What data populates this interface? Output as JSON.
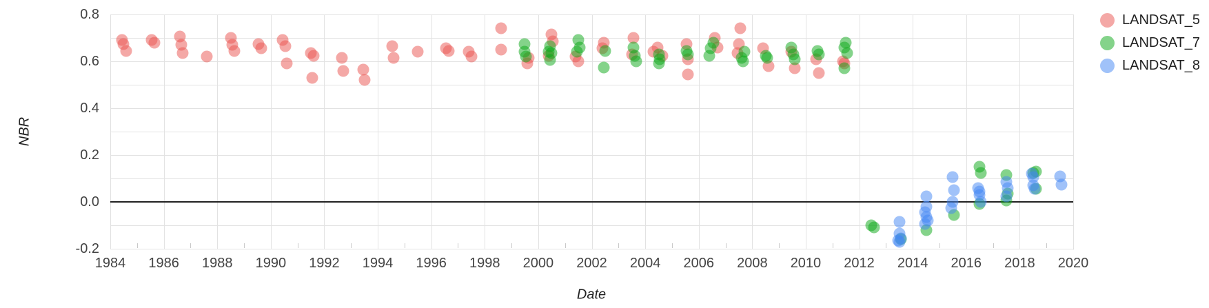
{
  "axes": {
    "x_title": "Date",
    "y_title": "NBR"
  },
  "legend": {
    "items": [
      {
        "label": "LANDSAT_5",
        "color": "rgba(233,81,77,0.5)"
      },
      {
        "label": "LANDSAT_7",
        "color": "rgba(10,167,22,0.5)"
      },
      {
        "label": "LANDSAT_8",
        "color": "rgba(66,133,244,0.5)"
      }
    ]
  },
  "chart_data": {
    "type": "scatter",
    "title": "",
    "xlabel": "Date",
    "ylabel": "NBR",
    "xlim": [
      1984,
      2020
    ],
    "ylim": [
      -0.2,
      0.8
    ],
    "x_tick_labels": [
      "1984",
      "1986",
      "1988",
      "1990",
      "1992",
      "1994",
      "1996",
      "1998",
      "2000",
      "2002",
      "2004",
      "2006",
      "2008",
      "2010",
      "2012",
      "2014",
      "2016",
      "2018",
      "2020"
    ],
    "y_tick_labels": [
      "-0.2",
      "0.0",
      "0.2",
      "0.4",
      "0.6",
      "0.8"
    ],
    "grid": "on",
    "grid_x_step_years": 2,
    "grid_y_step": 0.1,
    "zero_line": true,
    "legend_position": "right-outside-top",
    "marker_diameter_px": 17,
    "series": [
      {
        "name": "LANDSAT_5",
        "color": "rgba(233,81,77,0.5)",
        "points": [
          [
            1984.45,
            0.69
          ],
          [
            1984.5,
            0.675
          ],
          [
            1984.6,
            0.645
          ],
          [
            1985.55,
            0.69
          ],
          [
            1985.65,
            0.68
          ],
          [
            1986.6,
            0.705
          ],
          [
            1986.65,
            0.67
          ],
          [
            1986.7,
            0.635
          ],
          [
            1987.6,
            0.62
          ],
          [
            1988.5,
            0.7
          ],
          [
            1988.55,
            0.67
          ],
          [
            1988.65,
            0.645
          ],
          [
            1989.55,
            0.675
          ],
          [
            1989.65,
            0.655
          ],
          [
            1990.45,
            0.69
          ],
          [
            1990.55,
            0.665
          ],
          [
            1990.6,
            0.59
          ],
          [
            1991.5,
            0.635
          ],
          [
            1991.6,
            0.625
          ],
          [
            1991.55,
            0.53
          ],
          [
            1992.65,
            0.615
          ],
          [
            1992.7,
            0.56
          ],
          [
            1993.45,
            0.565
          ],
          [
            1993.5,
            0.52
          ],
          [
            1994.55,
            0.665
          ],
          [
            1994.6,
            0.615
          ],
          [
            1995.5,
            0.64
          ],
          [
            1996.55,
            0.655
          ],
          [
            1996.65,
            0.645
          ],
          [
            1997.4,
            0.64
          ],
          [
            1997.5,
            0.62
          ],
          [
            1998.6,
            0.74
          ],
          [
            1998.6,
            0.65
          ],
          [
            1999.65,
            0.615
          ],
          [
            1999.6,
            0.59
          ],
          [
            2000.5,
            0.715
          ],
          [
            2000.55,
            0.685
          ],
          [
            2000.4,
            0.625
          ],
          [
            2001.4,
            0.62
          ],
          [
            2001.5,
            0.6
          ],
          [
            2002.45,
            0.68
          ],
          [
            2002.4,
            0.655
          ],
          [
            2003.55,
            0.7
          ],
          [
            2003.5,
            0.63
          ],
          [
            2004.45,
            0.66
          ],
          [
            2004.3,
            0.64
          ],
          [
            2004.65,
            0.625
          ],
          [
            2005.55,
            0.675
          ],
          [
            2005.6,
            0.61
          ],
          [
            2005.6,
            0.545
          ],
          [
            2006.6,
            0.7
          ],
          [
            2006.7,
            0.66
          ],
          [
            2007.55,
            0.74
          ],
          [
            2007.5,
            0.675
          ],
          [
            2007.45,
            0.635
          ],
          [
            2008.4,
            0.655
          ],
          [
            2008.6,
            0.58
          ],
          [
            2009.45,
            0.64
          ],
          [
            2009.6,
            0.57
          ],
          [
            2010.4,
            0.61
          ],
          [
            2010.5,
            0.55
          ],
          [
            2011.4,
            0.6
          ],
          [
            2011.45,
            0.59
          ]
        ]
      },
      {
        "name": "LANDSAT_7",
        "color": "rgba(10,167,22,0.5)",
        "points": [
          [
            1999.5,
            0.675
          ],
          [
            1999.5,
            0.64
          ],
          [
            1999.55,
            0.62
          ],
          [
            2000.45,
            0.665
          ],
          [
            2000.4,
            0.64
          ],
          [
            2000.5,
            0.635
          ],
          [
            2000.45,
            0.605
          ],
          [
            2001.5,
            0.69
          ],
          [
            2001.55,
            0.66
          ],
          [
            2001.45,
            0.64
          ],
          [
            2002.5,
            0.645
          ],
          [
            2002.45,
            0.575
          ],
          [
            2003.55,
            0.66
          ],
          [
            2003.6,
            0.625
          ],
          [
            2003.65,
            0.6
          ],
          [
            2004.5,
            0.63
          ],
          [
            2004.55,
            0.61
          ],
          [
            2004.5,
            0.59
          ],
          [
            2005.55,
            0.645
          ],
          [
            2005.6,
            0.63
          ],
          [
            2006.55,
            0.68
          ],
          [
            2006.45,
            0.655
          ],
          [
            2006.4,
            0.625
          ],
          [
            2007.7,
            0.64
          ],
          [
            2007.6,
            0.615
          ],
          [
            2007.65,
            0.6
          ],
          [
            2008.5,
            0.625
          ],
          [
            2008.55,
            0.615
          ],
          [
            2009.45,
            0.66
          ],
          [
            2009.55,
            0.63
          ],
          [
            2009.6,
            0.61
          ],
          [
            2010.45,
            0.645
          ],
          [
            2010.5,
            0.63
          ],
          [
            2011.5,
            0.68
          ],
          [
            2011.45,
            0.66
          ],
          [
            2011.55,
            0.635
          ],
          [
            2011.45,
            0.57
          ],
          [
            2012.45,
            -0.1
          ],
          [
            2012.55,
            -0.11
          ],
          [
            2013.55,
            -0.16
          ],
          [
            2014.5,
            -0.12
          ],
          [
            2015.55,
            -0.055
          ],
          [
            2016.5,
            0.15
          ],
          [
            2016.55,
            0.125
          ],
          [
            2016.5,
            -0.01
          ],
          [
            2017.5,
            0.115
          ],
          [
            2017.55,
            0.035
          ],
          [
            2017.5,
            0.005
          ],
          [
            2018.5,
            0.125
          ],
          [
            2018.6,
            0.13
          ],
          [
            2018.6,
            0.055
          ]
        ]
      },
      {
        "name": "LANDSAT_8",
        "color": "rgba(66,133,244,0.5)",
        "points": [
          [
            2013.5,
            -0.085
          ],
          [
            2013.5,
            -0.135
          ],
          [
            2013.55,
            -0.155
          ],
          [
            2013.5,
            -0.17
          ],
          [
            2013.45,
            -0.165
          ],
          [
            2014.5,
            0.025
          ],
          [
            2014.5,
            -0.02
          ],
          [
            2014.45,
            -0.045
          ],
          [
            2014.5,
            -0.065
          ],
          [
            2014.55,
            -0.08
          ],
          [
            2014.45,
            -0.095
          ],
          [
            2015.5,
            0.105
          ],
          [
            2015.55,
            0.05
          ],
          [
            2015.5,
            0.0
          ],
          [
            2015.45,
            -0.025
          ],
          [
            2016.45,
            0.06
          ],
          [
            2016.5,
            0.045
          ],
          [
            2016.5,
            0.03
          ],
          [
            2016.55,
            0.0
          ],
          [
            2017.5,
            0.085
          ],
          [
            2017.55,
            0.06
          ],
          [
            2017.5,
            0.025
          ],
          [
            2018.45,
            0.12
          ],
          [
            2018.5,
            0.105
          ],
          [
            2018.5,
            0.07
          ],
          [
            2018.55,
            0.055
          ],
          [
            2019.5,
            0.11
          ],
          [
            2019.55,
            0.075
          ]
        ]
      }
    ]
  }
}
